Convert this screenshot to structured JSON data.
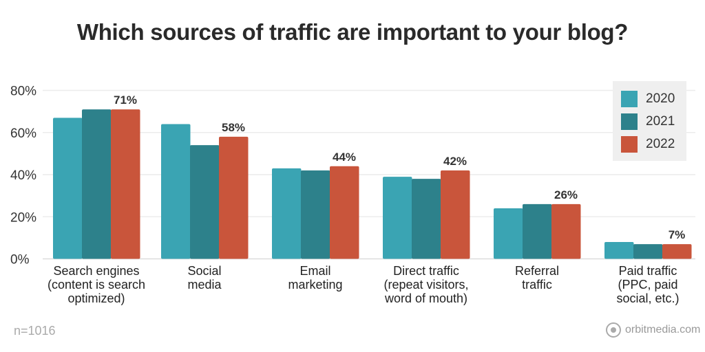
{
  "chart_data": {
    "type": "bar",
    "title": "Which sources of traffic are important to your blog?",
    "categories": [
      [
        "Search engines",
        "(content is search",
        "optimized)"
      ],
      [
        "Social",
        "media"
      ],
      [
        "Email",
        "marketing"
      ],
      [
        "Direct traffic",
        "(repeat visitors,",
        "word of mouth)"
      ],
      [
        "Referral",
        "traffic"
      ],
      [
        "Paid traffic",
        "(PPC, paid",
        "social, etc.)"
      ]
    ],
    "series": [
      {
        "name": "2020",
        "color": "#3aa4b3",
        "values": [
          67,
          64,
          43,
          39,
          24,
          8
        ]
      },
      {
        "name": "2021",
        "color": "#2d818b",
        "values": [
          71,
          54,
          42,
          38,
          26,
          7
        ]
      },
      {
        "name": "2022",
        "color": "#c9553b",
        "values": [
          71,
          58,
          44,
          42,
          26,
          7
        ]
      }
    ],
    "data_labels": [
      "71%",
      "58%",
      "44%",
      "42%",
      "26%",
      "7%"
    ],
    "yticks": [
      "0%",
      "20%",
      "40%",
      "60%",
      "80%"
    ],
    "ylim": [
      0,
      80
    ],
    "grid": true,
    "legend": "top-right"
  },
  "footnote": "n=1016",
  "brand": "orbitmedia.com"
}
